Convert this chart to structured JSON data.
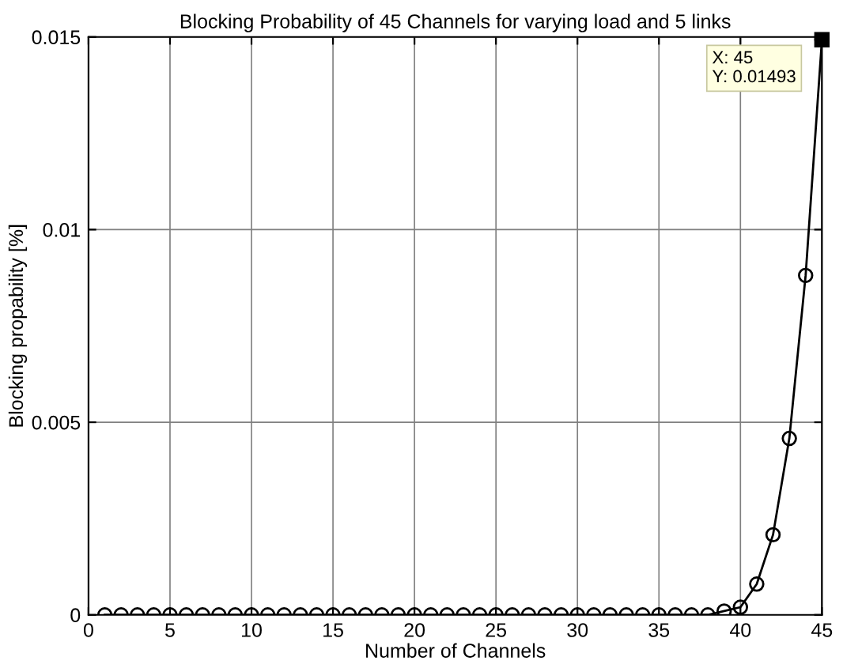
{
  "chart_data": {
    "type": "line",
    "title": "Blocking Probability of 45 Channels for varying load and 5 links",
    "xlabel": "Number of Channels",
    "ylabel": "Blocking propability [%]",
    "x": [
      1,
      2,
      3,
      4,
      5,
      6,
      7,
      8,
      9,
      10,
      11,
      12,
      13,
      14,
      15,
      16,
      17,
      18,
      19,
      20,
      21,
      22,
      23,
      24,
      25,
      26,
      27,
      28,
      29,
      30,
      31,
      32,
      33,
      34,
      35,
      36,
      37,
      38,
      39,
      40,
      41,
      42,
      43,
      44,
      45
    ],
    "series": [
      {
        "color": "#000000",
        "values": [
          0,
          0,
          0,
          0,
          0,
          0,
          0,
          0,
          0,
          0,
          0,
          0,
          0,
          0,
          0,
          0,
          0,
          0,
          0,
          0,
          0,
          0,
          0,
          0,
          0,
          0,
          0,
          0,
          0,
          0,
          0,
          0,
          0,
          0,
          0,
          0,
          0,
          0,
          0.0001,
          0.0002,
          0.0008,
          0.00208,
          0.00458,
          0.00881,
          0.01493
        ]
      }
    ],
    "marker": "circle",
    "line_style": "solid",
    "xlim": [
      0,
      45
    ],
    "ylim": [
      0,
      0.015
    ],
    "xticks": [
      0,
      5,
      10,
      15,
      20,
      25,
      30,
      35,
      40,
      45
    ],
    "yticks": [
      0,
      0.005,
      0.01,
      0.015
    ],
    "grid": true,
    "annotations": [
      {
        "text": "X: 45\nY: 0.01493",
        "x": 45,
        "y": 0.01493
      }
    ]
  }
}
